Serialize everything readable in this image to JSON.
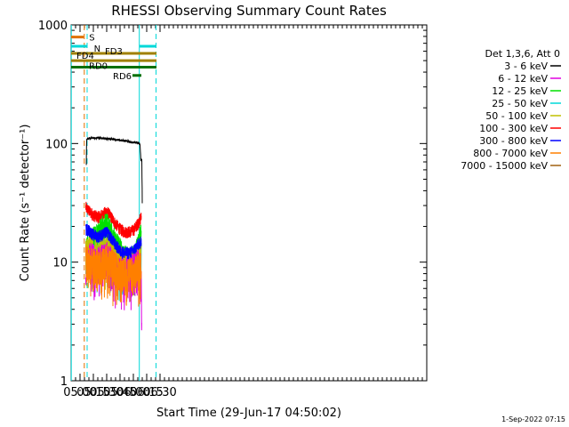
{
  "chart_data": {
    "type": "line",
    "title": "RHESSI Observing Summary Count Rates",
    "xlabel": "Start Time (29-Jun-17 04:50:02)",
    "ylabel": "Count Rate (s⁻¹ detector⁻¹)",
    "yscale": "log",
    "ylim": [
      1,
      1000
    ],
    "xlim": [
      290,
      690
    ],
    "x_unit": "minutes after 00:00 UT",
    "x_tick_labels": [
      "05:00",
      "05:15",
      "05:30",
      "05:45",
      "06:00",
      "06:15",
      "06:30"
    ],
    "x_tick_values": [
      300,
      315,
      330,
      345,
      360,
      375,
      390
    ],
    "y_tick_labels": [
      "1",
      "10",
      "100",
      "1000"
    ],
    "y_tick_values": [
      1,
      10,
      100,
      1000
    ],
    "legend_title": "Det 1,3,6, Att 0",
    "legend_placement": "right",
    "timestamp": "1-Sep-2022 07:15",
    "series": [
      {
        "name": "3 - 6 keV",
        "color": "#000000",
        "points": [
          [
            307.1,
            65
          ],
          [
            307.5,
            108
          ],
          [
            310,
            111
          ],
          [
            320,
            112
          ],
          [
            330,
            110
          ],
          [
            340,
            108
          ],
          [
            350,
            106
          ],
          [
            360,
            102
          ],
          [
            366,
            101
          ],
          [
            367.5,
            97
          ],
          [
            368.5,
            72
          ],
          [
            369.5,
            74
          ],
          [
            370,
            30
          ]
        ]
      },
      {
        "name": "6 - 12 keV",
        "color": "#e000e0",
        "points": [
          [
            306.5,
            10
          ],
          [
            310,
            11
          ],
          [
            320,
            10
          ],
          [
            330,
            11
          ],
          [
            340,
            9
          ],
          [
            350,
            8
          ],
          [
            360,
            9
          ],
          [
            366,
            10
          ],
          [
            368,
            9.5
          ],
          [
            369,
            6
          ],
          [
            369.5,
            2
          ]
        ]
      },
      {
        "name": "12 - 25 keV",
        "color": "#00e000",
        "points": [
          [
            306.5,
            13
          ],
          [
            310,
            14
          ],
          [
            315,
            16
          ],
          [
            320,
            18
          ],
          [
            325,
            20
          ],
          [
            330,
            21
          ],
          [
            335,
            18
          ],
          [
            340,
            15
          ],
          [
            345,
            13
          ],
          [
            350,
            11
          ],
          [
            355,
            11
          ],
          [
            360,
            11
          ],
          [
            365,
            14
          ],
          [
            369,
            17
          ]
        ]
      },
      {
        "name": "25 - 50 keV",
        "color": "#00d8d8",
        "points": [
          [
            306.5,
            11
          ],
          [
            310,
            11
          ],
          [
            320,
            11.5
          ],
          [
            330,
            12.5
          ],
          [
            340,
            11
          ],
          [
            350,
            9.5
          ],
          [
            360,
            9
          ],
          [
            366,
            10
          ],
          [
            369,
            11
          ]
        ]
      },
      {
        "name": "50 - 100 keV",
        "color": "#c0c000",
        "points": [
          [
            306.5,
            12
          ],
          [
            310,
            12.5
          ],
          [
            320,
            12
          ],
          [
            330,
            13
          ],
          [
            340,
            11.5
          ],
          [
            350,
            10
          ],
          [
            360,
            10
          ],
          [
            366,
            11
          ],
          [
            369,
            12
          ]
        ]
      },
      {
        "name": "100 - 300 keV",
        "color": "#ff0000",
        "points": [
          [
            306.5,
            29
          ],
          [
            310,
            27
          ],
          [
            315,
            25
          ],
          [
            320,
            24
          ],
          [
            325,
            25
          ],
          [
            330,
            27
          ],
          [
            335,
            24
          ],
          [
            340,
            21
          ],
          [
            345,
            19
          ],
          [
            350,
            18
          ],
          [
            355,
            18
          ],
          [
            360,
            18.5
          ],
          [
            365,
            21
          ],
          [
            369,
            24
          ]
        ]
      },
      {
        "name": "300 - 800 keV",
        "color": "#0000ff",
        "points": [
          [
            306.5,
            19
          ],
          [
            310,
            18.5
          ],
          [
            315,
            17
          ],
          [
            320,
            16.5
          ],
          [
            325,
            17
          ],
          [
            330,
            18
          ],
          [
            335,
            16
          ],
          [
            340,
            14
          ],
          [
            345,
            12.5
          ],
          [
            350,
            12
          ],
          [
            355,
            12
          ],
          [
            360,
            12.5
          ],
          [
            365,
            14
          ],
          [
            369,
            15
          ]
        ]
      },
      {
        "name": "800 - 7000 keV",
        "color": "#ff7f00",
        "points": [
          [
            306.5,
            10.5
          ],
          [
            310,
            10
          ],
          [
            320,
            9.5
          ],
          [
            330,
            10.5
          ],
          [
            340,
            9
          ],
          [
            350,
            8
          ],
          [
            360,
            8
          ],
          [
            366,
            9
          ],
          [
            369,
            10
          ]
        ]
      },
      {
        "name": "7000 - 15000 keV",
        "color": "#a06010",
        "points": []
      }
    ],
    "vertical_markers": [
      {
        "color": "#00d8d8",
        "style": "solid",
        "x": 290.2
      },
      {
        "color": "#e07000",
        "style": "dashed",
        "x": 304.8
      },
      {
        "color": "#00d8d8",
        "style": "dashed",
        "x": 308.0
      },
      {
        "color": "#00d8d8",
        "style": "solid",
        "x": 366.7
      },
      {
        "color": "#00d8d8",
        "style": "dashed",
        "x": 385.5
      }
    ],
    "state_bars": [
      {
        "label": "S",
        "color": "#e07000",
        "y": 790,
        "x0": 290,
        "x1": 304.2
      },
      {
        "label": "N",
        "color": "#00d8d8",
        "y": 660,
        "x0": 290,
        "x1": 307.6
      },
      {
        "label": "",
        "color": "#00d8d8",
        "y": 660,
        "x0": 366.7,
        "x1": 386
      },
      {
        "label": "FD3",
        "color": "#a08000",
        "y": 575,
        "x0": 290,
        "x1": 386
      },
      {
        "label": "FD4",
        "color": "#a08000",
        "y": 500,
        "x0": 290,
        "x1": 386
      },
      {
        "label": "RD0",
        "color": "#007000",
        "y": 440,
        "x0": 290,
        "x1": 386
      },
      {
        "label": "RD6",
        "color": "#007000",
        "y": 375,
        "x0": 359,
        "x1": 369
      }
    ]
  }
}
